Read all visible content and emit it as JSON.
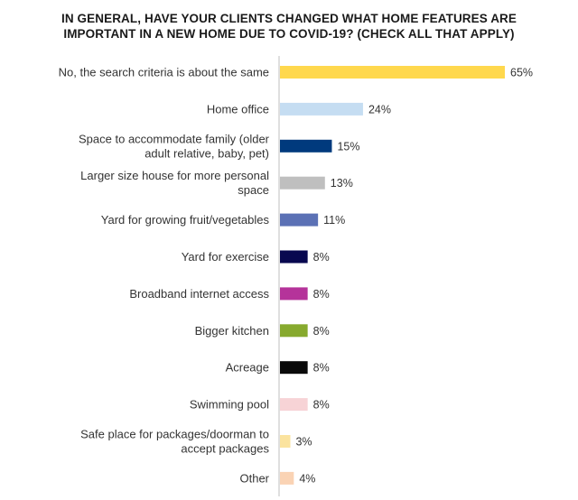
{
  "chart_data": {
    "type": "bar",
    "orientation": "horizontal",
    "title_lines": [
      "IN GENERAL, HAVE YOUR CLIENTS CHANGED WHAT HOME FEATURES ARE",
      "IMPORTANT IN A NEW HOME DUE TO COVID-19? (CHECK ALL THAT APPLY)"
    ],
    "categories": [
      [
        "No, the search criteria is about the same"
      ],
      [
        "Home office"
      ],
      [
        "Space to accommodate family (older",
        "adult relative, baby, pet)"
      ],
      [
        "Larger size house for more personal",
        "space"
      ],
      [
        "Yard for growing fruit/vegetables"
      ],
      [
        "Yard for exercise"
      ],
      [
        "Broadband internet access"
      ],
      [
        "Bigger kitchen"
      ],
      [
        "Acreage"
      ],
      [
        "Swimming pool"
      ],
      [
        "Safe place for packages/doorman to",
        "accept packages"
      ],
      [
        "Other"
      ]
    ],
    "values": [
      65,
      24,
      15,
      13,
      11,
      8,
      8,
      8,
      8,
      8,
      3,
      4
    ],
    "value_labels": [
      "65%",
      "24%",
      "15%",
      "13%",
      "11%",
      "8%",
      "8%",
      "8%",
      "8%",
      "8%",
      "3%",
      "4%"
    ],
    "colors": [
      "#FFD84D",
      "#C5DDF2",
      "#003A7D",
      "#BFBFBF",
      "#5B71B5",
      "#08084F",
      "#B5339A",
      "#87AA2E",
      "#0A0A0A",
      "#F7D3D6",
      "#FBE39E",
      "#FAD3B4"
    ],
    "axis_color": "#BFBFBF",
    "xlim": [
      0,
      65
    ],
    "grid": false,
    "legend": "none"
  }
}
